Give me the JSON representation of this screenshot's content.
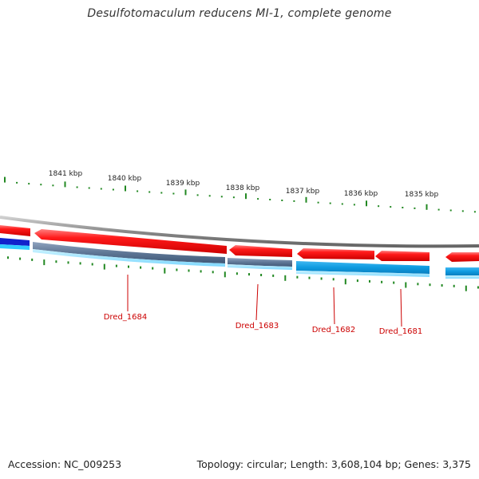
{
  "title": "Desulfotomaculum reducens MI-1, complete genome",
  "footer": {
    "accession": "Accession: NC_009253",
    "topology": "Topology: circular; Length: 3,608,104 bp; Genes: 3,375"
  },
  "ruler_labels": [
    "1841 kbp",
    "1840 kbp",
    "1839 kbp",
    "1838 kbp",
    "1837 kbp",
    "1836 kbp",
    "1835 kbp"
  ],
  "genes": [
    "Dred_1684",
    "Dred_1683",
    "Dred_1682",
    "Dred_1681"
  ],
  "colors": {
    "forward_cds": "#ee1111",
    "reverse_strand": "#1199ee",
    "backbone": "#888888",
    "ruler_tick": "#228822",
    "gene_label": "#cc0000"
  }
}
